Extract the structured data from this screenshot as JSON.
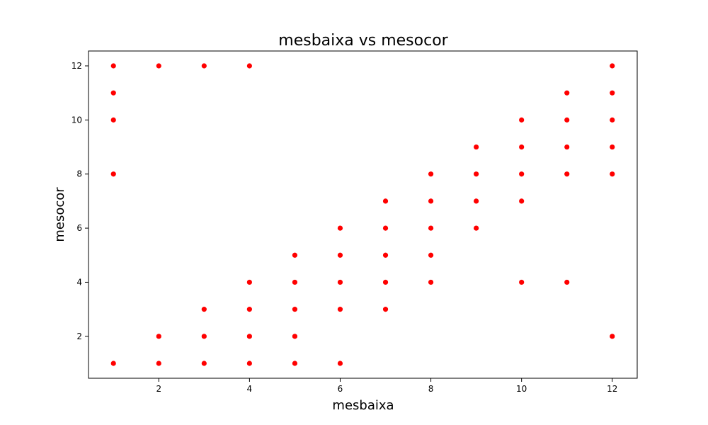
{
  "chart_data": {
    "type": "scatter",
    "title": "mesbaixa vs mesocor",
    "xlabel": "mesbaixa",
    "ylabel": "mesocor",
    "xlim": [
      0.45,
      12.55
    ],
    "ylim": [
      0.45,
      12.55
    ],
    "xticks": [
      2,
      4,
      6,
      8,
      10,
      12
    ],
    "yticks": [
      2,
      4,
      6,
      8,
      10,
      12
    ],
    "grid": false,
    "marker_color": "#ff0000",
    "points": [
      [
        1,
        1
      ],
      [
        1,
        8
      ],
      [
        1,
        10
      ],
      [
        1,
        11
      ],
      [
        1,
        12
      ],
      [
        2,
        1
      ],
      [
        2,
        2
      ],
      [
        2,
        12
      ],
      [
        3,
        1
      ],
      [
        3,
        2
      ],
      [
        3,
        3
      ],
      [
        3,
        12
      ],
      [
        4,
        1
      ],
      [
        4,
        2
      ],
      [
        4,
        3
      ],
      [
        4,
        4
      ],
      [
        4,
        12
      ],
      [
        5,
        1
      ],
      [
        5,
        2
      ],
      [
        5,
        3
      ],
      [
        5,
        4
      ],
      [
        5,
        5
      ],
      [
        6,
        1
      ],
      [
        6,
        3
      ],
      [
        6,
        4
      ],
      [
        6,
        5
      ],
      [
        6,
        6
      ],
      [
        7,
        3
      ],
      [
        7,
        4
      ],
      [
        7,
        5
      ],
      [
        7,
        6
      ],
      [
        7,
        7
      ],
      [
        8,
        4
      ],
      [
        8,
        5
      ],
      [
        8,
        6
      ],
      [
        8,
        7
      ],
      [
        8,
        8
      ],
      [
        9,
        6
      ],
      [
        9,
        7
      ],
      [
        9,
        8
      ],
      [
        9,
        9
      ],
      [
        10,
        4
      ],
      [
        10,
        7
      ],
      [
        10,
        8
      ],
      [
        10,
        9
      ],
      [
        10,
        10
      ],
      [
        11,
        4
      ],
      [
        11,
        8
      ],
      [
        11,
        9
      ],
      [
        11,
        10
      ],
      [
        11,
        11
      ],
      [
        12,
        2
      ],
      [
        12,
        8
      ],
      [
        12,
        9
      ],
      [
        12,
        10
      ],
      [
        12,
        11
      ],
      [
        12,
        12
      ]
    ]
  }
}
